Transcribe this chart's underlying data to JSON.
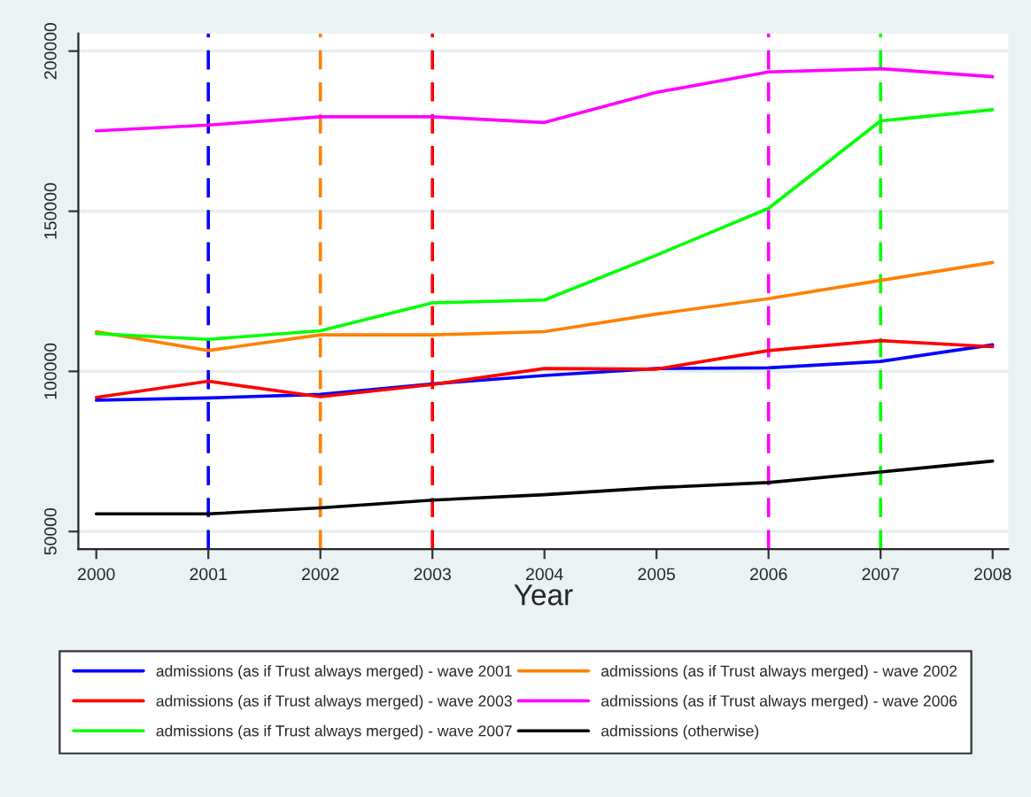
{
  "chart_data": {
    "type": "line",
    "xlabel": "Year",
    "x": [
      2000,
      2001,
      2002,
      2003,
      2004,
      2005,
      2006,
      2007,
      2008
    ],
    "series": [
      {
        "name": "admissions (as if Trust always merged) - wave 2001",
        "color": "#0000ff",
        "values": [
          91000,
          91700,
          92800,
          96100,
          98700,
          100900,
          101100,
          103100,
          108300
        ]
      },
      {
        "name": "admissions (as if Trust always merged) - wave 2002",
        "color": "#ff8000",
        "values": [
          112400,
          106500,
          111400,
          111400,
          112400,
          117900,
          122700,
          128400,
          134000
        ]
      },
      {
        "name": "admissions (as if Trust always merged) - wave 2003",
        "color": "#ff0000",
        "values": [
          91900,
          96900,
          92100,
          95900,
          100900,
          100700,
          106500,
          109600,
          107700
        ]
      },
      {
        "name": "admissions (as if Trust always merged) - wave 2006",
        "color": "#ff00ff",
        "values": [
          175100,
          176900,
          179500,
          179500,
          177700,
          187100,
          193500,
          194500,
          192000
        ]
      },
      {
        "name": "admissions (as if Trust always merged) - wave 2007",
        "color": "#00ff00",
        "values": [
          111800,
          110000,
          112700,
          121400,
          122300,
          136300,
          150900,
          178200,
          181700
        ]
      },
      {
        "name": "admissions (otherwise)",
        "color": "#000000",
        "values": [
          55500,
          55500,
          57400,
          59800,
          61500,
          63700,
          65300,
          68600,
          72000
        ]
      }
    ],
    "ref_lines": [
      {
        "axis": "x",
        "value": 2001,
        "color": "#0000ff",
        "line_style": "dashed"
      },
      {
        "axis": "x",
        "value": 2002,
        "color": "#ff8000",
        "line_style": "dashed"
      },
      {
        "axis": "x",
        "value": 2003,
        "color": "#ff0000",
        "line_style": "dashed"
      },
      {
        "axis": "x",
        "value": 2006,
        "color": "#ff00ff",
        "line_style": "dashed"
      },
      {
        "axis": "x",
        "value": 2007,
        "color": "#00ff00",
        "line_style": "dashed"
      }
    ],
    "xlim": [
      1999.84,
      2008.14
    ],
    "xticks": [
      2000,
      2001,
      2002,
      2003,
      2004,
      2005,
      2006,
      2007,
      2008
    ],
    "ylim": [
      44500,
      205500
    ],
    "yticks": [
      50000,
      100000,
      150000,
      200000
    ],
    "grid": "y",
    "legend": "bottom",
    "marker": "none",
    "line_style": "solid"
  }
}
